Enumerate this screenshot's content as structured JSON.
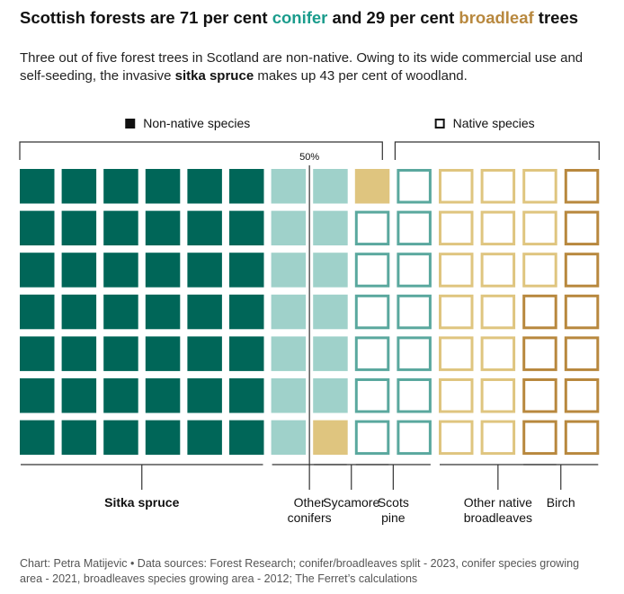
{
  "header": {
    "title_pre": "Scottish forests are 71 per cent ",
    "title_conifer": "conifer",
    "title_mid": " and 29 per cent ",
    "title_broadleaf": "broadleaf",
    "title_post": " trees",
    "subtitle_pre": "Three out of five forest trees in Scotland are non-native. Owing to its wide commercial use and self-seeding, the invasive ",
    "subtitle_bold": "sitka spruce",
    "subtitle_post": " makes up 43 per cent of woodland."
  },
  "colors": {
    "sitka": "#006658",
    "nonnative_conifer": "#9fd1ca",
    "nonnative_broadleaf": "#dfc57f",
    "native_conifer": "#5aa89e",
    "native_broadleaf": "#dfc57f",
    "birch": "#b8883e",
    "text": "#111111",
    "muted": "#555555",
    "rule": "#333333"
  },
  "chart_data": {
    "type": "waffle",
    "rows": 7,
    "columns": 14,
    "units": "squares",
    "group_labels": {
      "non_native": "Non-native species",
      "native": "Native species"
    },
    "midpoint_label": "50%",
    "categories": [
      {
        "name": "Sitka spruce",
        "label_lines": [
          "Sitka spruce"
        ],
        "bold": true,
        "native": false,
        "type": "conifer",
        "count": 42
      },
      {
        "name": "Other conifers",
        "label_lines": [
          "Other",
          "conifers"
        ],
        "bold": false,
        "native": false,
        "type": "conifer",
        "count": 13
      },
      {
        "name": "Sycamore",
        "label_lines": [
          "Sycamore"
        ],
        "bold": false,
        "native": false,
        "type": "broadleaf",
        "count": 2
      },
      {
        "name": "Scots pine",
        "label_lines": [
          "Scots",
          "pine"
        ],
        "bold": false,
        "native": true,
        "type": "conifer",
        "count": 13
      },
      {
        "name": "Other native broadleaves",
        "label_lines": [
          "Other native",
          "broadleaves"
        ],
        "bold": false,
        "native": true,
        "type": "broadleaf",
        "count": 17
      },
      {
        "name": "Birch",
        "label_lines": [
          "Birch"
        ],
        "bold": false,
        "native": true,
        "type": "birch",
        "count": 11
      }
    ]
  },
  "footer": {
    "credit": "Chart: Petra Matijevic • Data sources: Forest Research; conifer/broadleaves split - 2023, conifer species growing area - 2021, broadleaves species growing area - 2012; The Ferret’s calculations"
  }
}
